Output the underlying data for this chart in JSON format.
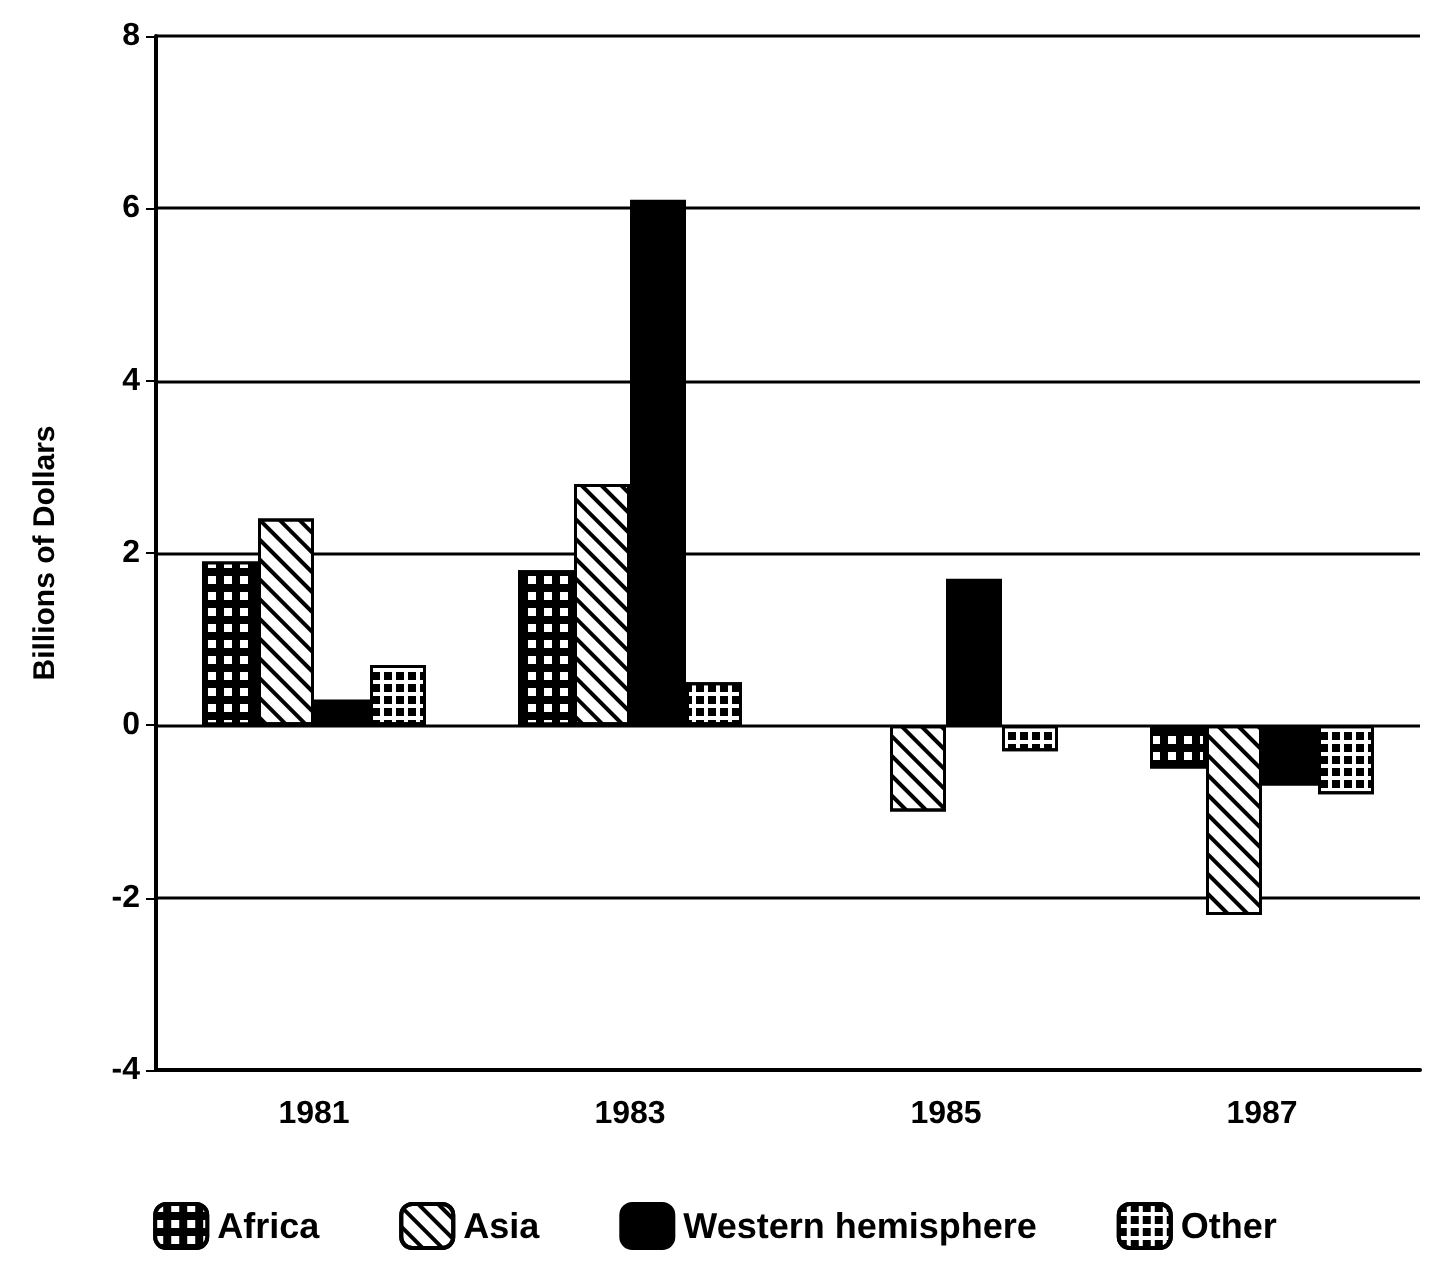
{
  "chart_data": {
    "type": "bar",
    "ylabel": "Billions of Dollars",
    "categories": [
      "1981",
      "1983",
      "1985",
      "1987"
    ],
    "series": [
      {
        "name": "Africa",
        "color": "#000000",
        "values": [
          1.9,
          1.8,
          null,
          -0.5
        ]
      },
      {
        "name": "Asia",
        "color": "#ffffff",
        "values": [
          2.4,
          2.8,
          -1.0,
          -2.2
        ]
      },
      {
        "name": "Western hemisphere",
        "color": "#000000",
        "values": [
          0.3,
          6.1,
          1.7,
          -0.7
        ]
      },
      {
        "name": "Other",
        "color": "#ffffff",
        "values": [
          0.7,
          0.5,
          -0.3,
          -0.8
        ]
      }
    ],
    "ylim": [
      -4,
      8
    ],
    "yticks": [
      -4,
      -2,
      0,
      2,
      4,
      6,
      8
    ],
    "grid": "y",
    "legend": "bottom"
  }
}
